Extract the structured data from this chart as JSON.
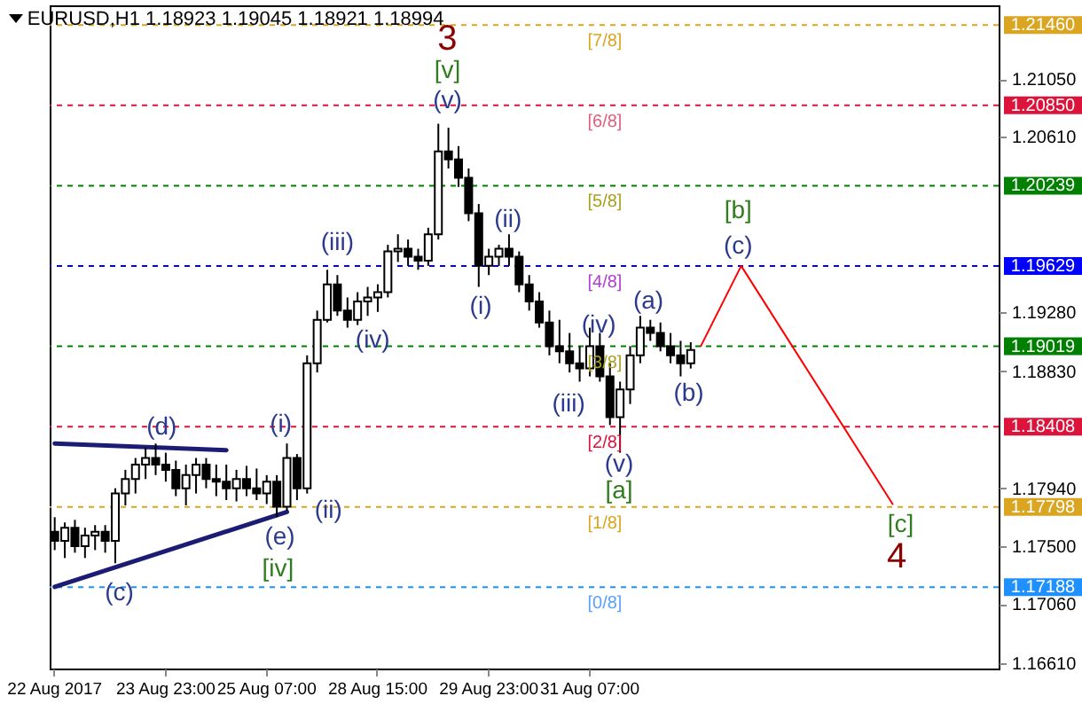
{
  "chart_data": {
    "type": "candlestick",
    "title": "EURUSD,H1  1.18923 1.19045 1.18921 1.18994",
    "categories": [
      "22 Aug 2017",
      null,
      null,
      null,
      null,
      null,
      null,
      null,
      null,
      null,
      null,
      "23 Aug 23:00",
      null,
      null,
      null,
      null,
      null,
      null,
      null,
      null,
      null,
      "25 Aug 07:00",
      null,
      null,
      null,
      null,
      null,
      null,
      null,
      null,
      null,
      null,
      "28 Aug 15:00",
      null,
      null,
      null,
      null,
      null,
      null,
      null,
      null,
      null,
      null,
      "29 Aug 23:00",
      null,
      null,
      null,
      null,
      null,
      null,
      null,
      null,
      null,
      "31 Aug 07:00",
      null,
      null,
      null,
      null,
      null,
      null,
      null,
      null,
      null,
      null,
      null,
      null,
      null,
      null,
      null,
      null,
      null,
      null,
      null,
      null,
      null,
      null,
      null,
      null,
      null,
      null,
      null,
      null,
      null,
      null,
      null,
      null,
      null,
      null,
      null,
      null,
      null,
      null,
      null,
      null
    ],
    "ohlc": [
      [
        1.1761,
        1.1772,
        1.1747,
        1.1754
      ],
      [
        1.1754,
        1.1768,
        1.1741,
        1.1764
      ],
      [
        1.1764,
        1.177,
        1.1745,
        1.175
      ],
      [
        1.175,
        1.1764,
        1.1741,
        1.1758
      ],
      [
        1.1758,
        1.1766,
        1.1747,
        1.1761
      ],
      [
        1.1761,
        1.1766,
        1.1745,
        1.1754
      ],
      [
        1.1754,
        1.1794,
        1.1737,
        1.179
      ],
      [
        1.179,
        1.1808,
        1.1781,
        1.1801
      ],
      [
        1.1801,
        1.1817,
        1.179,
        1.1812
      ],
      [
        1.1812,
        1.1825,
        1.1801,
        1.1817
      ],
      [
        1.1817,
        1.1828,
        1.1804,
        1.1812
      ],
      [
        1.1812,
        1.1821,
        1.1799,
        1.1808
      ],
      [
        1.1808,
        1.1815,
        1.1788,
        1.1794
      ],
      [
        1.1794,
        1.1812,
        1.1781,
        1.1804
      ],
      [
        1.1804,
        1.1817,
        1.179,
        1.1812
      ],
      [
        1.1812,
        1.1817,
        1.1794,
        1.1801
      ],
      [
        1.1801,
        1.1812,
        1.1788,
        1.1799
      ],
      [
        1.1799,
        1.1812,
        1.1785,
        1.1794
      ],
      [
        1.1794,
        1.1808,
        1.1784,
        1.1801
      ],
      [
        1.1801,
        1.1811,
        1.1788,
        1.1794
      ],
      [
        1.1794,
        1.1809,
        1.1785,
        1.179
      ],
      [
        1.179,
        1.1804,
        1.1782,
        1.1799
      ],
      [
        1.1799,
        1.1804,
        1.1772,
        1.178
      ],
      [
        1.178,
        1.1828,
        1.1777,
        1.1817
      ],
      [
        1.1817,
        1.182,
        1.1785,
        1.1794
      ],
      [
        1.1794,
        1.1895,
        1.179,
        1.1889
      ],
      [
        1.1889,
        1.1929,
        1.1882,
        1.1922
      ],
      [
        1.1922,
        1.196,
        1.192,
        1.1949
      ],
      [
        1.1949,
        1.1956,
        1.1925,
        1.1929
      ],
      [
        1.1929,
        1.1939,
        1.1916,
        1.1922
      ],
      [
        1.1922,
        1.1943,
        1.1918,
        1.1936
      ],
      [
        1.1936,
        1.1947,
        1.1925,
        1.1939
      ],
      [
        1.1939,
        1.1949,
        1.1928,
        1.1943
      ],
      [
        1.1943,
        1.1979,
        1.1939,
        1.1974
      ],
      [
        1.1974,
        1.1987,
        1.1966,
        1.1976
      ],
      [
        1.1976,
        1.1983,
        1.1963,
        1.197
      ],
      [
        1.197,
        1.1976,
        1.196,
        1.1967
      ],
      [
        1.1967,
        1.1992,
        1.1963,
        1.1987
      ],
      [
        1.1987,
        1.2071,
        1.1983,
        1.205
      ],
      [
        1.205,
        1.2068,
        1.2037,
        1.2044
      ],
      [
        1.2044,
        1.2054,
        1.2023,
        1.203
      ],
      [
        1.203,
        1.2037,
        1.1997,
        1.2003
      ],
      [
        1.2003,
        1.201,
        1.1947,
        1.1963
      ],
      [
        1.1963,
        1.1976,
        1.1956,
        1.197
      ],
      [
        1.197,
        1.1979,
        1.1963,
        1.1976
      ],
      [
        1.1976,
        1.1987,
        1.1963,
        1.197
      ],
      [
        1.197,
        1.1974,
        1.1943,
        1.1949
      ],
      [
        1.1949,
        1.1956,
        1.1929,
        1.1936
      ],
      [
        1.1936,
        1.1943,
        1.1916,
        1.192
      ],
      [
        1.192,
        1.1929,
        1.1895,
        1.1902
      ],
      [
        1.1902,
        1.1922,
        1.1889,
        1.1898
      ],
      [
        1.1898,
        1.1912,
        1.1882,
        1.1889
      ],
      [
        1.1889,
        1.1902,
        1.1875,
        1.1885
      ],
      [
        1.1885,
        1.1916,
        1.1879,
        1.1902
      ],
      [
        1.1902,
        1.1912,
        1.1875,
        1.1879
      ],
      [
        1.1879,
        1.1889,
        1.1842,
        1.1848
      ],
      [
        1.1848,
        1.1875,
        1.1821,
        1.1869
      ],
      [
        1.1869,
        1.1902,
        1.1858,
        1.1895
      ],
      [
        1.1895,
        1.1925,
        1.1889,
        1.1916
      ],
      [
        1.1916,
        1.1922,
        1.1906,
        1.1912
      ],
      [
        1.1912,
        1.192,
        1.1898,
        1.1902
      ],
      [
        1.1902,
        1.1912,
        1.1889,
        1.1895
      ],
      [
        1.1895,
        1.1906,
        1.1879,
        1.1889
      ],
      [
        1.1889,
        1.1905,
        1.1885,
        1.1899
      ],
      null,
      null,
      null,
      null,
      null,
      null,
      null,
      null,
      null,
      null,
      null,
      null,
      null,
      null,
      null,
      null,
      null,
      null,
      null,
      null,
      null,
      null,
      null,
      null,
      null,
      null,
      null,
      null,
      null,
      null
    ],
    "series": [
      {
        "type": "line",
        "color": "#ff0000",
        "values": [
          null,
          null,
          null,
          null,
          null,
          null,
          null,
          null,
          null,
          null,
          null,
          null,
          null,
          null,
          null,
          null,
          null,
          null,
          null,
          null,
          null,
          null,
          null,
          null,
          null,
          null,
          null,
          null,
          null,
          null,
          null,
          null,
          null,
          null,
          null,
          null,
          null,
          null,
          null,
          null,
          null,
          null,
          null,
          null,
          null,
          null,
          null,
          null,
          null,
          null,
          null,
          null,
          null,
          null,
          null,
          null,
          null,
          null,
          null,
          null,
          null,
          null,
          null,
          null,
          1.1902,
          null,
          null,
          null,
          1.1963,
          null,
          null,
          null,
          null,
          null,
          null,
          null,
          null,
          null,
          null,
          null,
          null,
          null,
          null,
          1.1782,
          null,
          null,
          null,
          null,
          null,
          null,
          null,
          null,
          null,
          null
        ]
      },
      {
        "type": "line",
        "color": "#1c1c74",
        "values": [
          1.1828,
          null,
          null,
          null,
          null,
          null,
          null,
          null,
          null,
          null,
          null,
          null,
          null,
          null,
          null,
          null,
          null,
          1.1823,
          null,
          null,
          null,
          null,
          null,
          null,
          null,
          null,
          null,
          null,
          null,
          null,
          null,
          null,
          null,
          null,
          null,
          null,
          null,
          null,
          null,
          null,
          null,
          null,
          null,
          null,
          null,
          null,
          null,
          null,
          null,
          null,
          null,
          null,
          null,
          null,
          null,
          null,
          null,
          null,
          null,
          null,
          null,
          null,
          null,
          null,
          null,
          null,
          null,
          null,
          null,
          null,
          null,
          null,
          null,
          null,
          null,
          null,
          null,
          null,
          null,
          null,
          null,
          null,
          null,
          null,
          null,
          null,
          null,
          null,
          null,
          null,
          null,
          null,
          null,
          null
        ]
      },
      {
        "type": "line",
        "color": "#1c1c74",
        "values": [
          1.1719,
          null,
          null,
          null,
          null,
          null,
          null,
          null,
          null,
          null,
          null,
          null,
          null,
          null,
          null,
          null,
          null,
          null,
          null,
          null,
          null,
          null,
          null,
          1.1776,
          null,
          null,
          null,
          null,
          null,
          null,
          null,
          null,
          null,
          null,
          null,
          null,
          null,
          null,
          null,
          null,
          null,
          null,
          null,
          null,
          null,
          null,
          null,
          null,
          null,
          null,
          null,
          null,
          null,
          null,
          null,
          null,
          null,
          null,
          null,
          null,
          null,
          null,
          null,
          null,
          null,
          null,
          null,
          null,
          null,
          null,
          null,
          null,
          null,
          null,
          null,
          null,
          null,
          null,
          null,
          null,
          null,
          null,
          null,
          null,
          null,
          null,
          null,
          null,
          null,
          null,
          null,
          null,
          null,
          null
        ]
      }
    ],
    "ylim": [
      1.1657,
      1.2161
    ],
    "yticks": [
      {
        "value": 1.2105,
        "label": "1.21050"
      },
      {
        "value": 1.2061,
        "label": "1.20610"
      },
      {
        "value": 1.1928,
        "label": "1.19280"
      },
      {
        "value": 1.1883,
        "label": "1.18830"
      },
      {
        "value": 1.1794,
        "label": "1.17940"
      },
      {
        "value": 1.175,
        "label": "1.17500"
      },
      {
        "value": 1.1706,
        "label": "1.17060"
      },
      {
        "value": 1.1661,
        "label": "1.16610"
      }
    ],
    "ref_lines": [
      {
        "axis": "y",
        "value": 1.2146,
        "label": "1.21460",
        "color": "#daa520",
        "line_style": "dashed"
      },
      {
        "axis": "y",
        "value": 1.2085,
        "label": "1.20850",
        "color": "#dc143c",
        "line_style": "dashed"
      },
      {
        "axis": "y",
        "value": 1.20239,
        "label": "1.20239",
        "color": "#008000",
        "line_style": "dashed"
      },
      {
        "axis": "y",
        "value": 1.19629,
        "label": "1.19629",
        "color": "#0000ff",
        "line_style": "dashed"
      },
      {
        "axis": "y",
        "value": 1.19019,
        "label": "1.19019",
        "color": "#008000",
        "line_style": "dashed"
      },
      {
        "axis": "y",
        "value": 1.18408,
        "label": "1.18408",
        "color": "#dc143c",
        "line_style": "dashed"
      },
      {
        "axis": "y",
        "value": 1.17798,
        "label": "1.17798",
        "color": "#daa520",
        "line_style": "dashed"
      },
      {
        "axis": "y",
        "value": 1.17188,
        "label": "1.17188",
        "color": "#1e90ff",
        "line_style": "dashed"
      }
    ],
    "annotations": [
      "3",
      "[v]",
      {
        "text": "(v)",
        "y": 1.2088
      },
      "(iii)",
      {
        "text": "(iv)",
        "y": 1.1906
      },
      "(i)",
      "(ii)",
      "(iii)",
      {
        "text": "(iv)",
        "y": 1.1918
      },
      "(v)",
      "[a]",
      "(a)",
      "(b)",
      "[b]",
      "(c)",
      "[c]",
      "4",
      {
        "text": "(c)",
        "y": 1.1714
      },
      {
        "text": "(d)",
        "y": 1.184
      },
      "(e)",
      "[iv]",
      {
        "text": "(i)",
        "y": 1.1842
      },
      {
        "text": "(ii)",
        "y": 1.1777
      },
      {
        "text": "[7/8]",
        "y": 1.2146
      },
      {
        "text": "[6/8]",
        "y": 1.2085
      },
      {
        "text": "[5/8]",
        "y": 1.20239
      },
      {
        "text": "[4/8]",
        "y": 1.19629
      },
      {
        "text": "[3/8]",
        "y": 1.19019
      },
      {
        "text": "[2/8]",
        "y": 1.18408
      },
      {
        "text": "[1/8]",
        "y": 1.17798
      },
      {
        "text": "[0/8]",
        "y": 1.17188
      }
    ]
  }
}
